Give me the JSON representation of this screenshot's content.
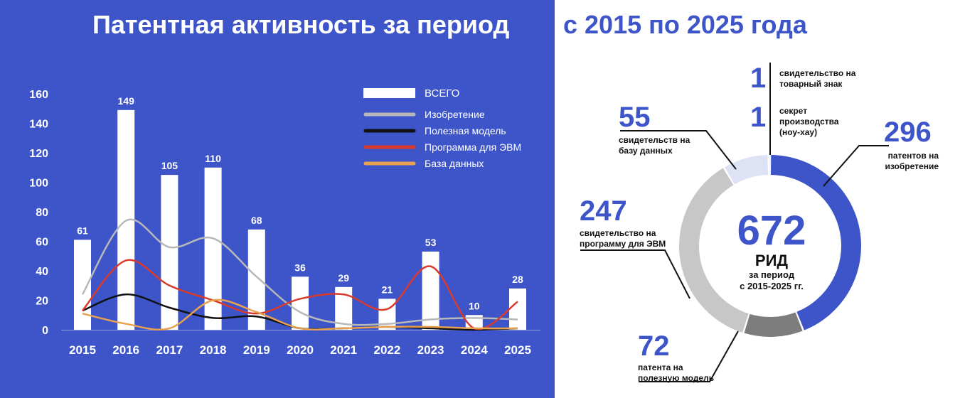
{
  "title_left": "Патентная активность за период",
  "title_right": "с 2015 по 2025 года",
  "colors": {
    "bg_blue": "#3d55c9",
    "bar": "#ffffff",
    "invention": "#b8b8b8",
    "utility": "#111111",
    "program": "#d93a2c",
    "database": "#e8a14f",
    "dark_grey": "#7d7d7d",
    "light_grey": "#c7c7c7",
    "pale": "#dde3f4"
  },
  "chart_data": [
    {
      "type": "bar",
      "categories": [
        "2015",
        "2016",
        "2017",
        "2018",
        "2019",
        "2020",
        "2021",
        "2022",
        "2023",
        "2024",
        "2025"
      ],
      "ylim": [
        0,
        160
      ],
      "yticks": [
        0,
        20,
        40,
        60,
        80,
        100,
        120,
        140,
        160
      ],
      "series": [
        {
          "name": "ВСЕГО",
          "kind": "bar",
          "values": [
            61,
            149,
            105,
            110,
            68,
            36,
            29,
            21,
            53,
            10,
            28
          ]
        },
        {
          "name": "Изобретение",
          "kind": "line",
          "values": [
            24,
            74,
            56,
            62,
            36,
            12,
            4,
            4,
            7,
            8,
            7
          ]
        },
        {
          "name": "Полезная модель",
          "kind": "line",
          "values": [
            13,
            24,
            15,
            8,
            9,
            1,
            1,
            2,
            1,
            0,
            1
          ]
        },
        {
          "name": "Программа для ЭВМ",
          "kind": "line",
          "values": [
            13,
            47,
            30,
            20,
            11,
            21,
            24,
            14,
            43,
            1,
            19
          ]
        },
        {
          "name": "База данных",
          "kind": "line",
          "values": [
            11,
            4,
            1,
            20,
            12,
            1,
            1,
            2,
            2,
            1,
            1
          ]
        }
      ]
    },
    {
      "type": "pie",
      "total": "672",
      "total_label": "РИД",
      "total_sub": [
        "за период",
        "с 2015-2025 гг."
      ],
      "slices": [
        {
          "value": 296,
          "color": "#3d55c9"
        },
        {
          "value": 72,
          "color": "#7d7d7d"
        },
        {
          "value": 247,
          "color": "#c7c7c7"
        },
        {
          "value": 55,
          "color": "#dde3f4"
        },
        {
          "value": 1,
          "color": "#dde3f4"
        },
        {
          "value": 1,
          "color": "#dde3f4"
        }
      ],
      "annotations": [
        {
          "value": "1",
          "label": [
            "свидетельство на",
            "товарный знак"
          ]
        },
        {
          "value": "1",
          "label": [
            "секрет",
            "производства",
            "(ноу-хау)"
          ]
        },
        {
          "value": "55",
          "label": [
            "свидетельств на",
            "базу данных"
          ]
        },
        {
          "value": "296",
          "label": [
            "патентов на",
            "изобретение"
          ]
        },
        {
          "value": "247",
          "label": [
            "свидетельство на",
            "программу для ЭВМ"
          ]
        },
        {
          "value": "72",
          "label": [
            "патента на",
            "полезную модель"
          ]
        }
      ]
    }
  ]
}
